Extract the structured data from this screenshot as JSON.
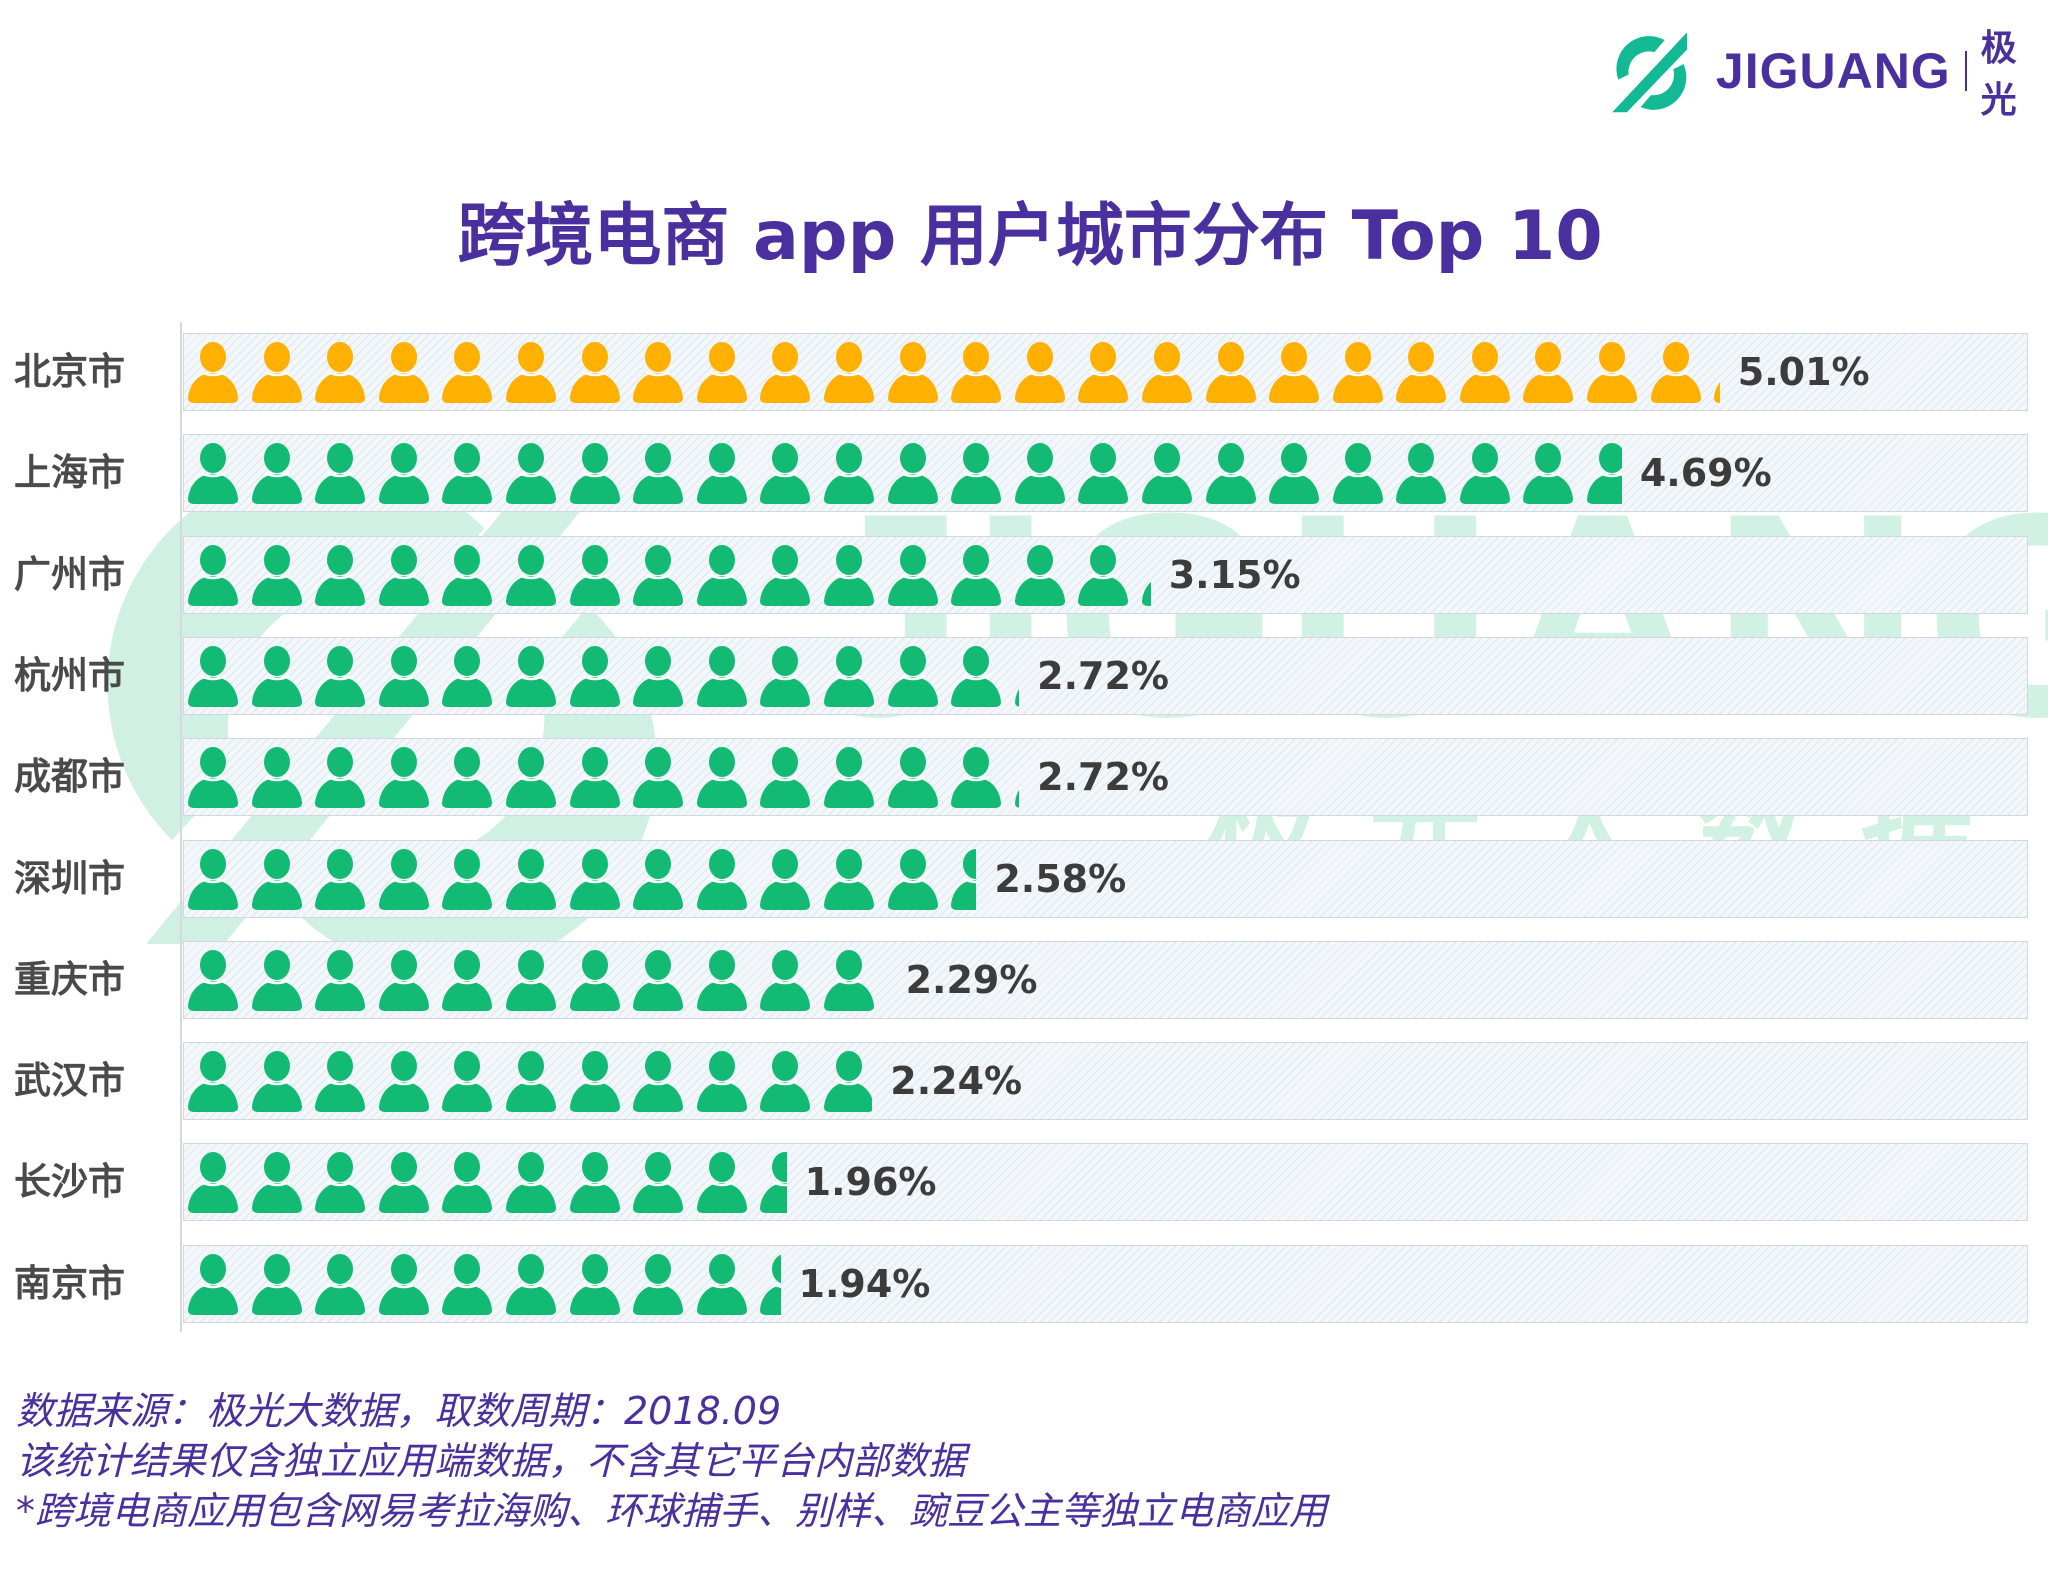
{
  "logo": {
    "brand": "JIGUANG",
    "brand_cn": "极光",
    "color": "#13b994"
  },
  "watermark": {
    "brand": "JIGUANG",
    "cn": "极光大数据"
  },
  "chart_data": {
    "type": "bar",
    "title": "跨境电商 app 用户城市分布 Top 10",
    "categories": [
      "北京市",
      "上海市",
      "广州市",
      "杭州市",
      "成都市",
      "深圳市",
      "重庆市",
      "武汉市",
      "长沙市",
      "南京市"
    ],
    "values": [
      5.01,
      4.69,
      3.15,
      2.72,
      2.72,
      2.58,
      2.29,
      2.24,
      1.96,
      1.94
    ],
    "labels": [
      "5.01%",
      "4.69%",
      "3.15%",
      "2.72%",
      "2.72%",
      "2.58%",
      "2.29%",
      "2.24%",
      "1.96%",
      "1.94%"
    ],
    "unit": "%",
    "orientation": "horizontal",
    "style": "pictogram-person-icons",
    "colors": {
      "highlight": "#ffb000",
      "default": "#13ba74",
      "title": "#4a2f9e"
    }
  },
  "footer": {
    "line1": "数据来源：极光大数据，取数周期：2018.09",
    "line2": "该统计结果仅含独立应用端数据，不含其它平台内部数据",
    "line3": " *跨境电商应用包含网易考拉海购、环球捕手、别样、豌豆公主等独立电商应用"
  }
}
